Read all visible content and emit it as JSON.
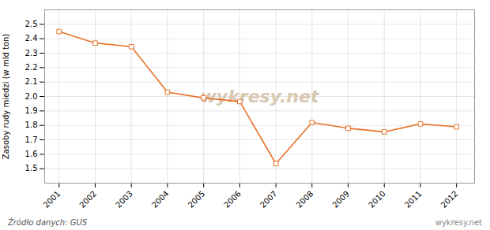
{
  "chart_data": {
    "type": "line",
    "x": [
      2001,
      2002,
      2003,
      2004,
      2005,
      2006,
      2007,
      2008,
      2009,
      2010,
      2011,
      2012
    ],
    "values": [
      2.45,
      2.37,
      2.345,
      2.03,
      1.99,
      1.965,
      1.535,
      1.82,
      1.78,
      1.755,
      1.81,
      1.79
    ],
    "color": "#e8722a",
    "marker": "square",
    "ylabel": "Zasoby rudy miedzi (w mld ton)",
    "xlim": [
      2000.6,
      2012.5
    ],
    "xticks": [
      2001,
      2002,
      2003,
      2004,
      2005,
      2006,
      2007,
      2008,
      2009,
      2010,
      2011,
      2012
    ],
    "ylim": [
      1.4,
      2.6
    ],
    "yticks": [
      1.5,
      1.6,
      1.7,
      1.8,
      1.9,
      {
        "value": 2.0,
        "label": "2.0"
      },
      2.1,
      2.2,
      2.3,
      2.4,
      2.5
    ],
    "grid": true,
    "annotations": [
      "wykresy.net",
      "Źródło danych:  GUS",
      "wykresy.net"
    ]
  }
}
